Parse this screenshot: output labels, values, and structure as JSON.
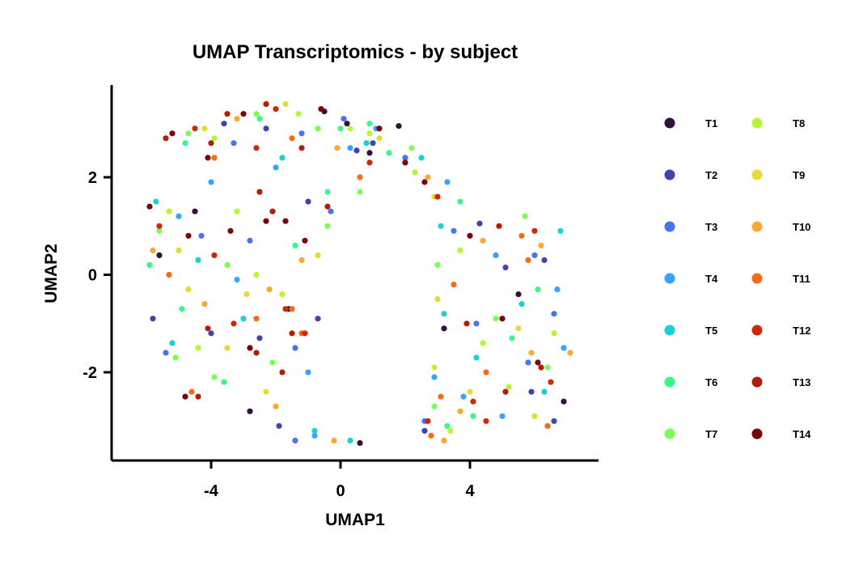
{
  "chart_data": {
    "type": "scatter",
    "title": "UMAP Transcriptomics - by subject",
    "xlabel": "UMAP1",
    "ylabel": "UMAP2",
    "xlim": [
      -7,
      8
    ],
    "ylim": [
      -3.8,
      3.9
    ],
    "x_ticks": [
      -4,
      0,
      4
    ],
    "y_ticks": [
      -2,
      0,
      2
    ],
    "x_tick_labels": [
      "-4",
      "0",
      "4"
    ],
    "y_tick_labels": [
      "-2",
      "0",
      "2"
    ],
    "grid": false,
    "legend_position": "right",
    "series": [
      {
        "name": "T1",
        "color": "#30123b",
        "points": [
          [
            -0.5,
            3.35
          ],
          [
            0.2,
            3.1
          ],
          [
            1.8,
            3.05
          ],
          [
            0.6,
            -3.45
          ],
          [
            -2.8,
            -2.8
          ],
          [
            5.5,
            -0.4
          ],
          [
            -1.6,
            -0.7
          ],
          [
            6.9,
            -2.6
          ],
          [
            -4.5,
            1.3
          ],
          [
            3.2,
            -1.1
          ],
          [
            0.9,
            2.5
          ],
          [
            -5.6,
            0.4
          ]
        ]
      },
      {
        "name": "T2",
        "color": "#4145ab",
        "points": [
          [
            -3.6,
            3.1
          ],
          [
            -2.3,
            3.0
          ],
          [
            0.5,
            2.55
          ],
          [
            -1.0,
            1.5
          ],
          [
            5.1,
            0.15
          ],
          [
            6.3,
            0.3
          ],
          [
            2.6,
            -3.2
          ],
          [
            -1.9,
            -3.1
          ],
          [
            -5.8,
            -0.9
          ],
          [
            -0.7,
            -0.9
          ],
          [
            4.3,
            1.05
          ],
          [
            -4.0,
            -1.2
          ],
          [
            5.9,
            -2.4
          ],
          [
            -2.5,
            -1.3
          ],
          [
            6.6,
            -3.0
          ],
          [
            1.0,
            2.7
          ]
        ]
      },
      {
        "name": "T3",
        "color": "#4675ed",
        "points": [
          [
            -3.3,
            2.7
          ],
          [
            -1.2,
            2.9
          ],
          [
            0.1,
            3.2
          ],
          [
            2.0,
            2.4
          ],
          [
            -4.3,
            0.8
          ],
          [
            4.2,
            -1.0
          ],
          [
            2.6,
            -3.0
          ],
          [
            -0.3,
            1.3
          ],
          [
            5.8,
            -1.8
          ],
          [
            -2.8,
            0.7
          ],
          [
            6.6,
            -0.8
          ],
          [
            -1.4,
            -1.5
          ],
          [
            3.5,
            0.9
          ],
          [
            -5.4,
            -1.6
          ],
          [
            6.0,
            0.4
          ],
          [
            -1.4,
            -3.4
          ]
        ]
      },
      {
        "name": "T4",
        "color": "#39a2fc",
        "points": [
          [
            -2.0,
            2.2
          ],
          [
            0.3,
            2.6
          ],
          [
            3.3,
            1.9
          ],
          [
            -5.0,
            1.2
          ],
          [
            4.8,
            0.4
          ],
          [
            -3.2,
            -0.1
          ],
          [
            2.9,
            -2.1
          ],
          [
            -1.0,
            -2.0
          ],
          [
            5.0,
            -2.9
          ],
          [
            6.7,
            -0.3
          ],
          [
            1.1,
            3.0
          ],
          [
            -4.0,
            1.9
          ],
          [
            3.8,
            -2.5
          ],
          [
            -0.8,
            -3.3
          ],
          [
            6.9,
            -1.5
          ]
        ]
      },
      {
        "name": "T5",
        "color": "#1bcfd4",
        "points": [
          [
            -1.8,
            2.4
          ],
          [
            0.8,
            2.7
          ],
          [
            2.5,
            2.4
          ],
          [
            -5.7,
            1.5
          ],
          [
            3.1,
            1.0
          ],
          [
            -4.4,
            0.3
          ],
          [
            5.6,
            -0.6
          ],
          [
            -5.2,
            -1.4
          ],
          [
            -0.8,
            -3.2
          ],
          [
            3.2,
            -0.8
          ],
          [
            6.3,
            -2.4
          ],
          [
            -3.0,
            -0.9
          ],
          [
            4.2,
            -1.7
          ],
          [
            0.3,
            -3.4
          ],
          [
            6.8,
            0.9
          ]
        ]
      },
      {
        "name": "T6",
        "color": "#3df58b",
        "points": [
          [
            -2.5,
            3.2
          ],
          [
            0.0,
            3.0
          ],
          [
            1.5,
            2.5
          ],
          [
            3.7,
            1.5
          ],
          [
            -5.9,
            0.2
          ],
          [
            -4.9,
            -0.7
          ],
          [
            5.3,
            -1.3
          ],
          [
            -3.6,
            -2.2
          ],
          [
            3.3,
            -3.1
          ],
          [
            -0.4,
            1.7
          ],
          [
            6.1,
            -0.3
          ],
          [
            -1.4,
            0.6
          ],
          [
            4.1,
            -2.9
          ],
          [
            -4.8,
            2.7
          ],
          [
            0.9,
            3.1
          ]
        ]
      },
      {
        "name": "T7",
        "color": "#7bfe55",
        "points": [
          [
            -4.7,
            2.9
          ],
          [
            -2.6,
            3.3
          ],
          [
            -0.7,
            3.0
          ],
          [
            2.2,
            2.6
          ],
          [
            -5.6,
            0.9
          ],
          [
            -3.5,
            0.2
          ],
          [
            3.0,
            0.2
          ],
          [
            4.8,
            -0.9
          ],
          [
            -2.1,
            -1.8
          ],
          [
            2.9,
            -2.7
          ],
          [
            6.4,
            -1.9
          ],
          [
            -0.4,
            1.0
          ],
          [
            -5.1,
            -1.7
          ],
          [
            5.7,
            1.2
          ],
          [
            -3.9,
            -2.1
          ],
          [
            0.6,
            1.7
          ]
        ]
      },
      {
        "name": "T8",
        "color": "#b9f535",
        "points": [
          [
            -3.9,
            2.8
          ],
          [
            -1.3,
            3.3
          ],
          [
            0.3,
            3.0
          ],
          [
            2.3,
            2.1
          ],
          [
            -5.3,
            1.3
          ],
          [
            3.7,
            0.5
          ],
          [
            -2.6,
            0.0
          ],
          [
            4.4,
            -1.4
          ],
          [
            -4.4,
            -1.5
          ],
          [
            3.4,
            -3.2
          ],
          [
            6.6,
            -1.2
          ],
          [
            -1.8,
            -0.4
          ],
          [
            0.9,
            2.9
          ],
          [
            5.2,
            -2.3
          ],
          [
            -3.2,
            1.3
          ]
        ]
      },
      {
        "name": "T9",
        "color": "#e2dc38",
        "points": [
          [
            -4.2,
            3.0
          ],
          [
            -1.7,
            3.5
          ],
          [
            1.2,
            2.8
          ],
          [
            2.9,
            1.6
          ],
          [
            -5.0,
            0.5
          ],
          [
            3.0,
            -0.5
          ],
          [
            -2.9,
            -0.4
          ],
          [
            4.0,
            -2.4
          ],
          [
            -2.3,
            -2.4
          ],
          [
            6.0,
            -2.9
          ],
          [
            -0.7,
            0.4
          ],
          [
            5.5,
            -1.1
          ],
          [
            -4.7,
            -0.3
          ],
          [
            2.9,
            -1.9
          ],
          [
            -3.5,
            -1.5
          ]
        ]
      },
      {
        "name": "T10",
        "color": "#fca835",
        "points": [
          [
            -3.2,
            3.2
          ],
          [
            -0.1,
            2.6
          ],
          [
            2.7,
            2.0
          ],
          [
            -5.8,
            0.5
          ],
          [
            4.4,
            0.7
          ],
          [
            6.2,
            0.6
          ],
          [
            -2.2,
            -0.3
          ],
          [
            3.7,
            -2.8
          ],
          [
            -0.2,
            -3.4
          ],
          [
            5.9,
            -1.6
          ],
          [
            -2.0,
            -2.7
          ],
          [
            7.1,
            -1.6
          ],
          [
            -1.2,
            0.3
          ],
          [
            3.2,
            -3.4
          ],
          [
            -4.2,
            -0.6
          ]
        ]
      },
      {
        "name": "T11",
        "color": "#f66b19",
        "points": [
          [
            -3.9,
            2.4
          ],
          [
            -1.5,
            2.8
          ],
          [
            0.6,
            2.0
          ],
          [
            3.5,
            -0.2
          ],
          [
            5.8,
            0.3
          ],
          [
            -5.3,
            0.0
          ],
          [
            -2.6,
            -0.9
          ],
          [
            4.5,
            -2.0
          ],
          [
            -1.2,
            -1.2
          ],
          [
            3.1,
            -2.5
          ],
          [
            6.4,
            -3.1
          ],
          [
            -4.6,
            -2.4
          ],
          [
            5.6,
            0.8
          ],
          [
            -1.5,
            -0.7
          ],
          [
            2.8,
            -3.3
          ]
        ]
      },
      {
        "name": "T12",
        "color": "#cb2a04",
        "points": [
          [
            -4.5,
            3.0
          ],
          [
            -2.0,
            3.4
          ],
          [
            0.9,
            2.3
          ],
          [
            -5.6,
            1.0
          ],
          [
            3.0,
            1.6
          ],
          [
            -1.7,
            -0.7
          ],
          [
            6.0,
            0.9
          ],
          [
            4.1,
            -2.6
          ],
          [
            -3.3,
            -1.0
          ],
          [
            4.5,
            -3.0
          ],
          [
            -1.1,
            -1.2
          ],
          [
            -3.9,
            0.4
          ],
          [
            6.5,
            -2.2
          ],
          [
            2.7,
            -3.0
          ],
          [
            -2.6,
            2.6
          ]
        ]
      },
      {
        "name": "T13",
        "color": "#b11e02",
        "points": [
          [
            -3.5,
            3.3
          ],
          [
            -2.3,
            3.5
          ],
          [
            -1.2,
            2.6
          ],
          [
            -5.4,
            2.8
          ],
          [
            -4.0,
            2.7
          ],
          [
            -2.5,
            1.7
          ],
          [
            -0.4,
            1.4
          ],
          [
            4.9,
            1.0
          ],
          [
            -2.1,
            1.3
          ],
          [
            3.9,
            -1.0
          ],
          [
            -1.8,
            -2.0
          ],
          [
            5.1,
            -2.4
          ],
          [
            -1.5,
            -1.2
          ],
          [
            -4.1,
            -1.1
          ],
          [
            6.2,
            -1.9
          ],
          [
            -2.6,
            -1.6
          ],
          [
            -4.4,
            -2.5
          ]
        ]
      },
      {
        "name": "T14",
        "color": "#7a0403",
        "points": [
          [
            -3.0,
            3.3
          ],
          [
            -0.6,
            3.4
          ],
          [
            2.0,
            2.3
          ],
          [
            -5.2,
            2.9
          ],
          [
            -4.1,
            2.4
          ],
          [
            1.2,
            3.0
          ],
          [
            -1.7,
            1.1
          ],
          [
            -4.7,
            0.8
          ],
          [
            -3.4,
            0.9
          ],
          [
            -2.3,
            1.1
          ],
          [
            -1.1,
            0.7
          ],
          [
            -5.9,
            1.4
          ],
          [
            4.0,
            0.8
          ],
          [
            5.0,
            -0.9
          ],
          [
            -2.8,
            -1.5
          ],
          [
            -4.8,
            -2.5
          ],
          [
            2.6,
            1.9
          ],
          [
            6.1,
            -1.8
          ]
        ]
      }
    ]
  }
}
